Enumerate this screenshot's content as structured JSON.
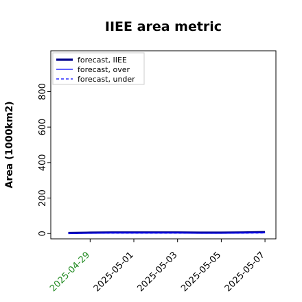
{
  "chart_data": {
    "type": "line",
    "title": "IIEE area metric",
    "xlabel": "",
    "ylabel": "Area (1000km2)",
    "yticks": [
      0,
      200,
      400,
      600,
      800
    ],
    "xticks": [
      "2025-04-29",
      "2025-05-01",
      "2025-05-03",
      "2025-05-05",
      "2025-05-07"
    ],
    "highlight_tick": "2025-04-29",
    "xlim": [
      "2025-04-27T04:48",
      "2025-05-07T12:00"
    ],
    "ylim": [
      -30,
      1030
    ],
    "grid": false,
    "legend_position": "top-left",
    "x": [
      "2025-04-28",
      "2025-04-29",
      "2025-04-30",
      "2025-05-01",
      "2025-05-02",
      "2025-05-03",
      "2025-05-04",
      "2025-05-05",
      "2025-05-06",
      "2025-05-07"
    ],
    "series": [
      {
        "name": "forecast, IIEE",
        "style": "thick",
        "color": "#00008b",
        "values": [
          3,
          5,
          6,
          6,
          6,
          6,
          5,
          5,
          6,
          8
        ]
      },
      {
        "name": "forecast, over",
        "style": "solid",
        "color": "#0000ff",
        "values": [
          2,
          3,
          4,
          4,
          4,
          4,
          3,
          3,
          4,
          5
        ]
      },
      {
        "name": "forecast, under",
        "style": "dashed",
        "color": "#0000ff",
        "values": [
          1,
          2,
          2,
          2,
          2,
          2,
          2,
          2,
          2,
          3
        ]
      }
    ],
    "colors": {
      "highlight_tick": "#228b22",
      "axis": "#000000"
    }
  }
}
